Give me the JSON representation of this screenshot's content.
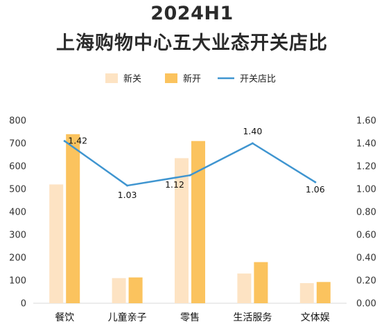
{
  "chart_data": {
    "type": "bar",
    "title": "2024H1",
    "subtitle": "上海购物中心五大业态开关店比",
    "categories": [
      "餐饮",
      "儿童亲子",
      "零售",
      "生活服务",
      "文体娱"
    ],
    "series": [
      {
        "name": "新关",
        "kind": "bar",
        "axis": "left",
        "color": "#fde3c3",
        "values": [
          520,
          110,
          635,
          130,
          88
        ]
      },
      {
        "name": "新开",
        "kind": "bar",
        "axis": "left",
        "color": "#fbc35e",
        "values": [
          740,
          113,
          710,
          180,
          93
        ]
      },
      {
        "name": "开关店比",
        "kind": "line",
        "axis": "right",
        "color": "#3f95d0",
        "values": [
          1.42,
          1.03,
          1.12,
          1.4,
          1.06
        ]
      }
    ],
    "data_labels": [
      "1.42",
      "1.03",
      "1.12",
      "1.40",
      "1.06"
    ],
    "ylim": [
      0,
      800
    ],
    "y_ticks": [
      "0",
      "100",
      "200",
      "300",
      "400",
      "500",
      "600",
      "700",
      "800"
    ],
    "y2lim": [
      0,
      1.6
    ],
    "y2_ticks": [
      "0.00",
      "0.20",
      "0.40",
      "0.60",
      "0.80",
      "1.00",
      "1.20",
      "1.40",
      "1.60"
    ],
    "legend_position": "top-center",
    "grid": false
  }
}
